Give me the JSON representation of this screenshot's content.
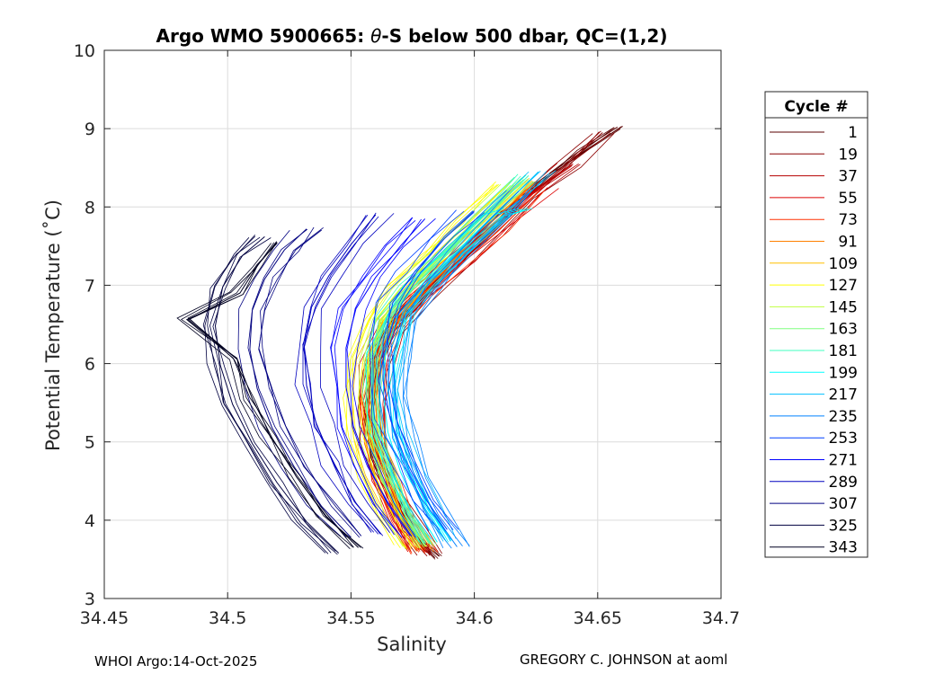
{
  "chart_data": {
    "type": "line",
    "title_prefix": "Argo WMO 5900665: ",
    "title_theta": "θ",
    "title_suffix": "-S below 500 dbar,  QC=(1,2)",
    "xlabel": "Salinity",
    "ylabel": "Potential Temperature (˚C)",
    "xlim": [
      34.45,
      34.7
    ],
    "ylim": [
      3,
      10
    ],
    "xticks": [
      34.45,
      34.5,
      34.55,
      34.6,
      34.65,
      34.7
    ],
    "xtick_labels": [
      "34.45",
      "34.5",
      "34.55",
      "34.6",
      "34.65",
      "34.7"
    ],
    "yticks": [
      3,
      4,
      5,
      6,
      7,
      8,
      9,
      10
    ],
    "ytick_labels": [
      "3",
      "4",
      "5",
      "6",
      "7",
      "8",
      "9",
      "10"
    ],
    "grid": true,
    "legend": {
      "title": "Cycle #",
      "placement": "outside-right",
      "entries": [
        {
          "label": "1",
          "color": "#5a0000"
        },
        {
          "label": "19",
          "color": "#8c0000"
        },
        {
          "label": "37",
          "color": "#b40000"
        },
        {
          "label": "55",
          "color": "#dc0000"
        },
        {
          "label": "73",
          "color": "#ff3000"
        },
        {
          "label": "91",
          "color": "#ff8000"
        },
        {
          "label": "109",
          "color": "#ffbf00"
        },
        {
          "label": "127",
          "color": "#ffff00"
        },
        {
          "label": "145",
          "color": "#bfff40"
        },
        {
          "label": "163",
          "color": "#80ff80"
        },
        {
          "label": "181",
          "color": "#40ffbf"
        },
        {
          "label": "199",
          "color": "#00ffff"
        },
        {
          "label": "217",
          "color": "#00bfff"
        },
        {
          "label": "235",
          "color": "#0080ff"
        },
        {
          "label": "253",
          "color": "#0040ff"
        },
        {
          "label": "271",
          "color": "#0000ff"
        },
        {
          "label": "289",
          "color": "#0000bf"
        },
        {
          "label": "307",
          "color": "#000080"
        },
        {
          "label": "325",
          "color": "#000040"
        },
        {
          "label": "343",
          "color": "#000020"
        }
      ]
    },
    "series": [
      {
        "name": "1",
        "color": "#5a0000",
        "points": [
          [
            34.584,
            3.52
          ],
          [
            34.576,
            3.8
          ],
          [
            34.566,
            4.3
          ],
          [
            34.558,
            4.8
          ],
          [
            34.556,
            5.3
          ],
          [
            34.558,
            5.8
          ],
          [
            34.562,
            6.3
          ],
          [
            34.572,
            6.7
          ],
          [
            34.585,
            7.1
          ],
          [
            34.598,
            7.5
          ],
          [
            34.612,
            7.9
          ],
          [
            34.625,
            8.3
          ],
          [
            34.642,
            8.7
          ],
          [
            34.658,
            9.02
          ]
        ]
      },
      {
        "name": "19",
        "color": "#8c0000",
        "points": [
          [
            34.582,
            3.55
          ],
          [
            34.574,
            3.9
          ],
          [
            34.566,
            4.4
          ],
          [
            34.56,
            4.9
          ],
          [
            34.558,
            5.4
          ],
          [
            34.56,
            5.9
          ],
          [
            34.566,
            6.4
          ],
          [
            34.576,
            6.8
          ],
          [
            34.59,
            7.2
          ],
          [
            34.604,
            7.6
          ],
          [
            34.62,
            8.1
          ],
          [
            34.636,
            8.5
          ],
          [
            34.652,
            8.95
          ]
        ]
      },
      {
        "name": "37",
        "color": "#b40000",
        "points": [
          [
            34.58,
            3.6
          ],
          [
            34.572,
            3.95
          ],
          [
            34.565,
            4.45
          ],
          [
            34.56,
            4.95
          ],
          [
            34.559,
            5.45
          ],
          [
            34.561,
            5.95
          ],
          [
            34.567,
            6.45
          ],
          [
            34.578,
            6.85
          ],
          [
            34.592,
            7.25
          ],
          [
            34.606,
            7.65
          ],
          [
            34.622,
            8.15
          ],
          [
            34.64,
            8.55
          ]
        ]
      },
      {
        "name": "55",
        "color": "#dc0000",
        "points": [
          [
            34.578,
            3.62
          ],
          [
            34.57,
            4.0
          ],
          [
            34.563,
            4.5
          ],
          [
            34.559,
            5.0
          ],
          [
            34.558,
            5.5
          ],
          [
            34.56,
            6.0
          ],
          [
            34.567,
            6.5
          ],
          [
            34.579,
            6.9
          ],
          [
            34.594,
            7.3
          ],
          [
            34.61,
            7.75
          ],
          [
            34.628,
            8.25
          ]
        ]
      },
      {
        "name": "73",
        "color": "#ff3000",
        "points": [
          [
            34.58,
            3.58
          ],
          [
            34.572,
            3.98
          ],
          [
            34.565,
            4.48
          ],
          [
            34.561,
            4.98
          ],
          [
            34.56,
            5.48
          ],
          [
            34.562,
            5.98
          ],
          [
            34.568,
            6.48
          ],
          [
            34.58,
            6.88
          ],
          [
            34.595,
            7.28
          ],
          [
            34.61,
            7.7
          ],
          [
            34.626,
            8.2
          ]
        ]
      },
      {
        "name": "91",
        "color": "#ff8000",
        "points": [
          [
            34.579,
            3.62
          ],
          [
            34.571,
            4.02
          ],
          [
            34.564,
            4.52
          ],
          [
            34.56,
            5.02
          ],
          [
            34.559,
            5.52
          ],
          [
            34.561,
            6.02
          ],
          [
            34.567,
            6.52
          ],
          [
            34.578,
            6.92
          ],
          [
            34.592,
            7.34
          ],
          [
            34.606,
            7.78
          ],
          [
            34.624,
            8.3
          ]
        ]
      },
      {
        "name": "109",
        "color": "#ffbf00",
        "points": [
          [
            34.577,
            3.65
          ],
          [
            34.569,
            4.05
          ],
          [
            34.562,
            4.55
          ],
          [
            34.557,
            5.05
          ],
          [
            34.556,
            5.55
          ],
          [
            34.557,
            6.05
          ],
          [
            34.563,
            6.55
          ],
          [
            34.574,
            6.95
          ],
          [
            34.588,
            7.38
          ],
          [
            34.603,
            7.82
          ],
          [
            34.62,
            8.35
          ]
        ]
      },
      {
        "name": "127",
        "color": "#ffff00",
        "points": [
          [
            34.575,
            3.66
          ],
          [
            34.567,
            4.06
          ],
          [
            34.56,
            4.56
          ],
          [
            34.555,
            5.06
          ],
          [
            34.553,
            5.56
          ],
          [
            34.555,
            6.06
          ],
          [
            34.56,
            6.56
          ],
          [
            34.57,
            6.96
          ],
          [
            34.584,
            7.38
          ],
          [
            34.598,
            7.8
          ],
          [
            34.614,
            8.3
          ]
        ]
      },
      {
        "name": "145",
        "color": "#bfff40",
        "points": [
          [
            34.578,
            3.64
          ],
          [
            34.57,
            4.04
          ],
          [
            34.563,
            4.54
          ],
          [
            34.558,
            5.04
          ],
          [
            34.556,
            5.54
          ],
          [
            34.557,
            6.04
          ],
          [
            34.562,
            6.54
          ],
          [
            34.572,
            6.94
          ],
          [
            34.586,
            7.36
          ],
          [
            34.6,
            7.8
          ],
          [
            34.616,
            8.28
          ]
        ]
      },
      {
        "name": "163",
        "color": "#80ff80",
        "points": [
          [
            34.58,
            3.68
          ],
          [
            34.572,
            4.08
          ],
          [
            34.565,
            4.58
          ],
          [
            34.56,
            5.08
          ],
          [
            34.558,
            5.58
          ],
          [
            34.559,
            6.08
          ],
          [
            34.564,
            6.58
          ],
          [
            34.574,
            6.98
          ],
          [
            34.588,
            7.4
          ],
          [
            34.603,
            7.85
          ],
          [
            34.62,
            8.35
          ]
        ]
      },
      {
        "name": "181",
        "color": "#40ffbf",
        "points": [
          [
            34.582,
            3.7
          ],
          [
            34.574,
            4.1
          ],
          [
            34.567,
            4.6
          ],
          [
            34.562,
            5.1
          ],
          [
            34.56,
            5.6
          ],
          [
            34.561,
            6.1
          ],
          [
            34.566,
            6.6
          ],
          [
            34.576,
            7.0
          ],
          [
            34.59,
            7.42
          ],
          [
            34.605,
            7.88
          ],
          [
            34.622,
            8.4
          ]
        ]
      },
      {
        "name": "199",
        "color": "#00ffff",
        "points": [
          [
            34.585,
            3.72
          ],
          [
            34.577,
            4.12
          ],
          [
            34.57,
            4.62
          ],
          [
            34.565,
            5.12
          ],
          [
            34.563,
            5.62
          ],
          [
            34.564,
            6.12
          ],
          [
            34.569,
            6.62
          ],
          [
            34.579,
            7.02
          ],
          [
            34.593,
            7.44
          ],
          [
            34.608,
            7.9
          ],
          [
            34.618,
            7.98
          ]
        ]
      },
      {
        "name": "217",
        "color": "#00bfff",
        "points": [
          [
            34.588,
            3.75
          ],
          [
            34.58,
            4.15
          ],
          [
            34.573,
            4.65
          ],
          [
            34.567,
            5.15
          ],
          [
            34.565,
            5.65
          ],
          [
            34.566,
            6.15
          ],
          [
            34.571,
            6.65
          ],
          [
            34.581,
            7.05
          ],
          [
            34.595,
            7.48
          ],
          [
            34.61,
            7.95
          ],
          [
            34.626,
            8.45
          ]
        ]
      },
      {
        "name": "235",
        "color": "#0080ff",
        "points": [
          [
            34.593,
            3.66
          ],
          [
            34.584,
            4.06
          ],
          [
            34.576,
            4.56
          ],
          [
            34.57,
            5.06
          ],
          [
            34.567,
            5.56
          ],
          [
            34.567,
            6.06
          ],
          [
            34.571,
            6.56
          ],
          [
            34.58,
            6.96
          ],
          [
            34.593,
            7.4
          ],
          [
            34.607,
            7.86
          ],
          [
            34.618,
            8.2
          ]
        ]
      },
      {
        "name": "253",
        "color": "#0040ff",
        "points": [
          [
            34.589,
            3.88
          ],
          [
            34.58,
            4.28
          ],
          [
            34.572,
            4.78
          ],
          [
            34.566,
            5.28
          ],
          [
            34.563,
            5.78
          ],
          [
            34.563,
            6.28
          ],
          [
            34.567,
            6.78
          ],
          [
            34.576,
            7.18
          ],
          [
            34.588,
            7.6
          ],
          [
            34.6,
            7.95
          ]
        ]
      },
      {
        "name": "271",
        "color": "#0000ff",
        "points": [
          [
            34.574,
            3.8
          ],
          [
            34.565,
            4.2
          ],
          [
            34.557,
            4.7
          ],
          [
            34.551,
            5.2
          ],
          [
            34.548,
            5.7
          ],
          [
            34.548,
            6.2
          ],
          [
            34.552,
            6.7
          ],
          [
            34.56,
            7.1
          ],
          [
            34.57,
            7.5
          ],
          [
            34.58,
            7.85
          ]
        ]
      },
      {
        "name": "289",
        "color": "#0000bf",
        "points": [
          [
            34.562,
            3.82
          ],
          [
            34.552,
            4.22
          ],
          [
            34.543,
            4.72
          ],
          [
            34.536,
            5.22
          ],
          [
            34.532,
            5.72
          ],
          [
            34.531,
            6.22
          ],
          [
            34.534,
            6.72
          ],
          [
            34.541,
            7.12
          ],
          [
            34.55,
            7.52
          ],
          [
            34.56,
            7.9
          ]
        ]
      },
      {
        "name": "307",
        "color": "#000080",
        "points": [
          [
            34.55,
            3.78
          ],
          [
            34.538,
            4.18
          ],
          [
            34.527,
            4.68
          ],
          [
            34.518,
            5.18
          ],
          [
            34.512,
            5.68
          ],
          [
            34.509,
            6.18
          ],
          [
            34.51,
            6.68
          ],
          [
            34.515,
            7.08
          ],
          [
            34.523,
            7.45
          ],
          [
            34.532,
            7.72
          ]
        ]
      },
      {
        "name": "325",
        "color": "#000040",
        "points": [
          [
            34.545,
            3.58
          ],
          [
            34.532,
            3.98
          ],
          [
            34.52,
            4.48
          ],
          [
            34.51,
            4.98
          ],
          [
            34.502,
            5.48
          ],
          [
            34.497,
            5.98
          ],
          [
            34.495,
            6.48
          ],
          [
            34.498,
            6.98
          ],
          [
            34.506,
            7.38
          ],
          [
            34.515,
            7.62
          ]
        ]
      },
      {
        "name": "343",
        "color": "#000020",
        "points": [
          [
            34.553,
            3.65
          ],
          [
            34.54,
            4.05
          ],
          [
            34.528,
            4.55
          ],
          [
            34.518,
            5.05
          ],
          [
            34.51,
            5.55
          ],
          [
            34.504,
            6.05
          ],
          [
            34.484,
            6.56
          ],
          [
            34.505,
            6.9
          ],
          [
            34.512,
            7.25
          ],
          [
            34.52,
            7.55
          ]
        ]
      }
    ]
  },
  "footer": {
    "left": "WHOI Argo:14-Oct-2025",
    "right": "GREGORY C. JOHNSON at aoml"
  }
}
